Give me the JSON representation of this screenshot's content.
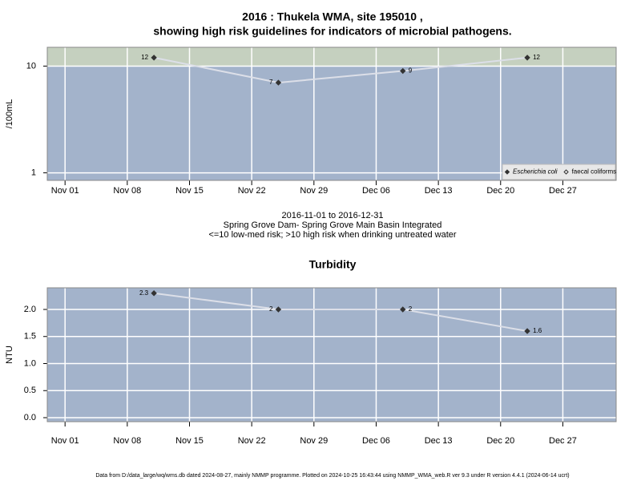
{
  "chart_data": [
    {
      "type": "line",
      "title": [
        "2016 : Thukela WMA, site 195010 ,",
        "showing high risk guidelines for indicators of microbial pathogens."
      ],
      "subtitle": [
        "2016-11-01 to 2016-12-31",
        "Spring Grove Dam- Spring Grove Main Basin Integrated",
        "<=10 low-med risk; >10 high risk when drinking untreated water"
      ],
      "ylabel": "/100mL",
      "log_scale": true,
      "x": [
        "2016-11-11",
        "2016-11-25",
        "2016-12-09",
        "2016-12-23"
      ],
      "xlim": [
        "2016-10-30",
        "2017-01-02"
      ],
      "xticks": [
        {
          "value": "2016-11-01",
          "label": "Nov 01"
        },
        {
          "value": "2016-11-08",
          "label": "Nov 08"
        },
        {
          "value": "2016-11-15",
          "label": "Nov 15"
        },
        {
          "value": "2016-11-22",
          "label": "Nov 22"
        },
        {
          "value": "2016-11-29",
          "label": "Nov 29"
        },
        {
          "value": "2016-12-06",
          "label": "Dec 06"
        },
        {
          "value": "2016-12-13",
          "label": "Dec 13"
        },
        {
          "value": "2016-12-20",
          "label": "Dec 20"
        },
        {
          "value": "2016-12-27",
          "label": "Dec 27"
        }
      ],
      "ylim": [
        0.85,
        15
      ],
      "yticks": [
        1,
        10
      ],
      "threshold": 10,
      "threshold_color": "#c5d0bf",
      "background": "#a3b3cb",
      "grid": true,
      "legend": "bottom-right",
      "series": [
        {
          "name": "Escherichia coli",
          "color": "#333333",
          "line_color": "#dcdfe8",
          "marker": "filled",
          "values": [
            12,
            7,
            9,
            12
          ]
        },
        {
          "name": "faecal coliforms",
          "color": "#333333",
          "line_color": "#dcdfe8",
          "marker": "open",
          "values": [
            null,
            null,
            null,
            null
          ]
        }
      ]
    },
    {
      "type": "line",
      "title": [
        "Turbidity"
      ],
      "ylabel": "NTU",
      "log_scale": false,
      "x": [
        "2016-11-11",
        "2016-11-25",
        "2016-12-09",
        "2016-12-23"
      ],
      "xlim": [
        "2016-10-30",
        "2017-01-02"
      ],
      "xticks": [
        {
          "value": "2016-11-01",
          "label": "Nov 01"
        },
        {
          "value": "2016-11-08",
          "label": "Nov 08"
        },
        {
          "value": "2016-11-15",
          "label": "Nov 15"
        },
        {
          "value": "2016-11-22",
          "label": "Nov 22"
        },
        {
          "value": "2016-11-29",
          "label": "Nov 29"
        },
        {
          "value": "2016-12-06",
          "label": "Dec 06"
        },
        {
          "value": "2016-12-13",
          "label": "Dec 13"
        },
        {
          "value": "2016-12-20",
          "label": "Dec 20"
        },
        {
          "value": "2016-12-27",
          "label": "Dec 27"
        }
      ],
      "ylim": [
        -0.074,
        2.4
      ],
      "yticks": [
        {
          "value": 0,
          "label": "0.0"
        },
        {
          "value": 0.5,
          "label": "0.5"
        },
        {
          "value": 1,
          "label": "1.0"
        },
        {
          "value": 1.5,
          "label": "1.5"
        },
        {
          "value": 2,
          "label": "2.0"
        }
      ],
      "background": "#a3b3cb",
      "grid": true,
      "series": [
        {
          "name": "Turbidity",
          "color": "#333333",
          "line_color": "#dcdfe8",
          "marker": "filled",
          "values": [
            2.3,
            2,
            2,
            1.6
          ]
        }
      ]
    }
  ],
  "footer": "Data from D:/data_large/wq/wms.db dated 2024-08-27, mainly NMMP programme. Plotted on 2024-10-25 16:43:44 using NMMP_WMA_web.R ver 9.3 under R version 4.4.1 (2024-06-14 ucrt)"
}
